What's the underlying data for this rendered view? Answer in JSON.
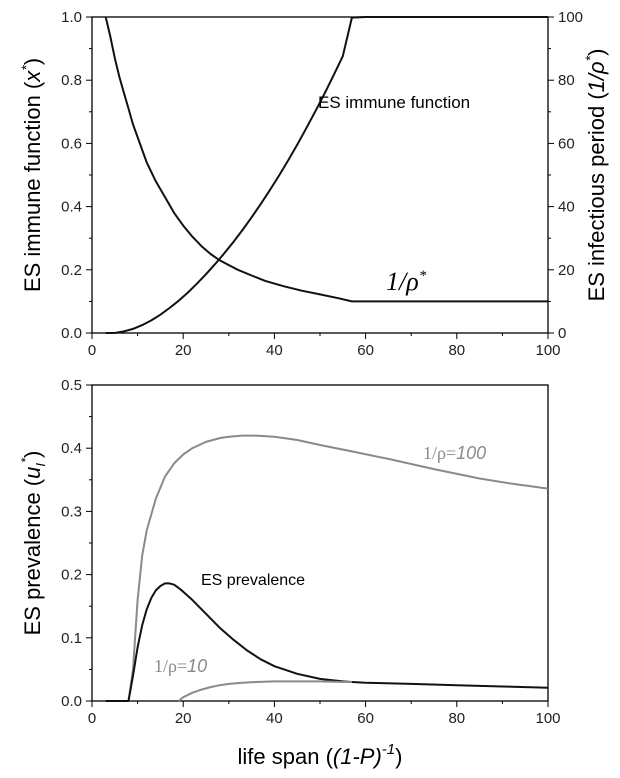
{
  "chart_data": [
    {
      "type": "line",
      "xlim": [
        0,
        100
      ],
      "ylim": [
        0,
        1.0
      ],
      "y2lim": [
        0,
        100
      ],
      "x_ticks": [
        "0",
        "20",
        "40",
        "60",
        "80",
        "100"
      ],
      "y_ticks": [
        "0.0",
        "0.2",
        "0.4",
        "0.6",
        "0.8",
        "1.0"
      ],
      "y2_ticks": [
        "0",
        "20",
        "40",
        "60",
        "80",
        "100"
      ],
      "ylabel": "ES immune function (x*)",
      "y2label": "ES infectious period (1/ρ*)",
      "ylabel_text": "ES immune function (",
      "ylabel_var": "x",
      "ylabel_sup": "*",
      "ylabel_close": ")",
      "y2label_text": "ES infectious period (",
      "y2label_var": "1/ρ",
      "y2label_sup": "*",
      "y2label_close": ")",
      "series": [
        {
          "name": "ES immune function",
          "axis": "left",
          "color": "#111111",
          "x": [
            3,
            5,
            7,
            9,
            11,
            13,
            15,
            17,
            19,
            21,
            23,
            25,
            27,
            29,
            31,
            33,
            35,
            37,
            39,
            41,
            43,
            45,
            47,
            49,
            51,
            53,
            55,
            57,
            60,
            70,
            80,
            90,
            100
          ],
          "y": [
            0.0,
            0.0,
            0.005,
            0.013,
            0.025,
            0.04,
            0.058,
            0.079,
            0.102,
            0.128,
            0.156,
            0.186,
            0.218,
            0.252,
            0.288,
            0.326,
            0.366,
            0.408,
            0.452,
            0.498,
            0.546,
            0.596,
            0.648,
            0.702,
            0.758,
            0.816,
            0.876,
            0.998,
            1.0,
            1.0,
            1.0,
            1.0,
            1.0
          ]
        },
        {
          "name": "1/ρ*",
          "axis": "right",
          "color": "#111111",
          "x": [
            3,
            4,
            5,
            6,
            7,
            8,
            9,
            10,
            12,
            14,
            16,
            18,
            20,
            22,
            24,
            26,
            28,
            30,
            32,
            35,
            38,
            42,
            46,
            50,
            54,
            57,
            60,
            70,
            80,
            90,
            100
          ],
          "y": [
            100,
            94,
            87,
            81,
            76,
            71,
            66,
            62,
            54,
            48,
            43,
            38,
            34,
            30.5,
            27.5,
            25,
            23,
            21.5,
            20,
            18.2,
            16.5,
            14.8,
            13.4,
            12.2,
            11.0,
            10,
            10,
            10,
            10,
            10,
            10
          ]
        }
      ],
      "annotations": [
        {
          "text": "ES immune function"
        },
        {
          "text": "1/ρ",
          "sup": "*"
        }
      ]
    },
    {
      "type": "line",
      "xlim": [
        0,
        100
      ],
      "ylim": [
        0,
        0.5
      ],
      "x_ticks": [
        "0",
        "20",
        "40",
        "60",
        "80",
        "100"
      ],
      "y_ticks": [
        "0.0",
        "0.1",
        "0.2",
        "0.3",
        "0.4",
        "0.5"
      ],
      "xlabel": "life span ((1-P)-1)",
      "xlabel_text": "life span (",
      "xlabel_var": "(1-P)",
      "xlabel_sup": "-1",
      "xlabel_close": ")",
      "ylabel": "ES prevalence (uI*)",
      "ylabel_text": "ES prevalence (",
      "ylabel_var": "u",
      "ylabel_sub": "I",
      "ylabel_sup": "*",
      "ylabel_close": ")",
      "series": [
        {
          "name": "1/ρ=100",
          "color": "#8a8a8a",
          "x": [
            3,
            8,
            9,
            10,
            11,
            12,
            14,
            16,
            18,
            20,
            22,
            25,
            28,
            30,
            33,
            36,
            40,
            45,
            50,
            57,
            65,
            75,
            85,
            92,
            100
          ],
          "y": [
            0.0,
            0.0,
            0.05,
            0.16,
            0.23,
            0.27,
            0.32,
            0.355,
            0.376,
            0.39,
            0.4,
            0.41,
            0.416,
            0.418,
            0.42,
            0.42,
            0.418,
            0.413,
            0.405,
            0.395,
            0.383,
            0.367,
            0.352,
            0.344,
            0.336
          ]
        },
        {
          "name": "ES prevalence",
          "color": "#111111",
          "x": [
            3,
            8,
            9,
            10,
            11,
            12,
            13,
            14,
            15,
            16,
            17,
            18,
            19,
            20,
            22,
            25,
            28,
            31,
            34,
            37,
            40,
            45,
            50,
            55,
            57,
            60,
            70,
            80,
            90,
            100
          ],
          "y": [
            0.0,
            0.0,
            0.04,
            0.085,
            0.12,
            0.145,
            0.163,
            0.175,
            0.182,
            0.186,
            0.186,
            0.184,
            0.179,
            0.173,
            0.16,
            0.138,
            0.116,
            0.097,
            0.08,
            0.066,
            0.055,
            0.043,
            0.035,
            0.031,
            0.03,
            0.029,
            0.027,
            0.025,
            0.023,
            0.021
          ]
        },
        {
          "name": "1/ρ=10",
          "color": "#8a8a8a",
          "x": [
            19,
            20,
            22,
            24,
            26,
            28,
            30,
            33,
            36,
            40,
            45,
            50,
            55,
            57
          ],
          "y": [
            0.0,
            0.006,
            0.013,
            0.018,
            0.022,
            0.025,
            0.027,
            0.029,
            0.03,
            0.031,
            0.031,
            0.031,
            0.03,
            0.03
          ]
        }
      ],
      "annotations": [
        {
          "text": "1/ρ=",
          "value": "100"
        },
        {
          "text": "ES prevalence"
        },
        {
          "text": "1/ρ=",
          "value": "10"
        }
      ]
    }
  ]
}
